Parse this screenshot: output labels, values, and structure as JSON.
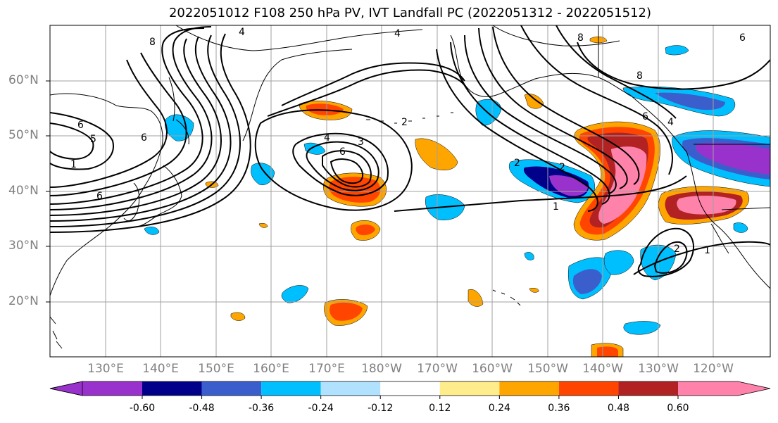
{
  "title": "2022051012 F108 250 hPa PV, IVT Landfall PC (2022051312 - 2022051512)",
  "map": {
    "lat_labels": [
      "60°N",
      "50°N",
      "40°N",
      "30°N",
      "20°N"
    ],
    "lon_labels": [
      "130°E",
      "140°E",
      "150°E",
      "160°E",
      "170°E",
      "180°W",
      "170°W",
      "160°W",
      "150°W",
      "140°W",
      "130°W",
      "120°W"
    ],
    "contour_labels": [
      "4",
      "4",
      "8",
      "6",
      "5",
      "6",
      "6",
      "8",
      "4",
      "3",
      "6",
      "2",
      "2",
      "1",
      "8",
      "6",
      "4",
      "2",
      "1",
      "2",
      "1",
      "6"
    ],
    "colors": {
      "coastline": "#000000",
      "gridline": "#a0a0a0",
      "contour": "#000000"
    }
  },
  "colorbar": {
    "levels": [
      "-0.60",
      "-0.48",
      "-0.36",
      "-0.24",
      "-0.12",
      "0.12",
      "0.24",
      "0.36",
      "0.48",
      "0.60"
    ],
    "colors": [
      "#9932cc",
      "#00008b",
      "#3a5fcd",
      "#00bfff",
      "#b0e2ff",
      "#ffffff",
      "#ffec8b",
      "#ffa500",
      "#ff4500",
      "#b22222",
      "#ff82ab"
    ]
  }
}
